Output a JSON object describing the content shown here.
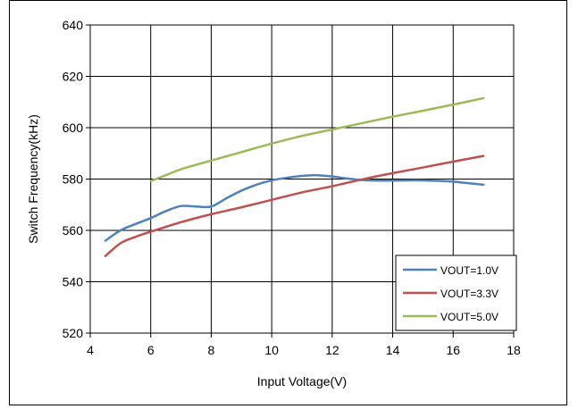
{
  "chart_data": {
    "type": "line",
    "title": "",
    "xlabel": "Input Voltage(V)",
    "ylabel": "Switch Frequency(kHz)",
    "xlim": [
      4,
      18
    ],
    "ylim": [
      520,
      640
    ],
    "xticks": [
      4,
      6,
      8,
      10,
      12,
      14,
      16,
      18
    ],
    "yticks": [
      520,
      540,
      560,
      580,
      600,
      620,
      640
    ],
    "grid": true,
    "legend_position": "bottom-right",
    "series": [
      {
        "name": "VOUT=1.0V",
        "color": "#4f81bd",
        "x": [
          4.5,
          5.0,
          5.5,
          6.0,
          6.5,
          7.0,
          7.5,
          8.0,
          8.5,
          9.0,
          9.5,
          10.0,
          10.5,
          11.0,
          11.5,
          12.0,
          12.5,
          13.0,
          13.5,
          14.0,
          14.5,
          15.0,
          15.5,
          16.0,
          16.5,
          17.0
        ],
        "y": [
          556,
          560,
          562.5,
          564.8,
          567.5,
          569.5,
          569.3,
          569.3,
          572.5,
          575.5,
          577.8,
          579.5,
          580.5,
          581.2,
          581.5,
          581.0,
          580.2,
          579.6,
          579.4,
          579.4,
          579.5,
          579.5,
          579.3,
          579.0,
          578.4,
          577.8
        ]
      },
      {
        "name": "VOUT=3.3V",
        "color": "#c0504d",
        "x": [
          4.5,
          5.0,
          5.5,
          6.0,
          7.0,
          8.0,
          9.0,
          10.0,
          11.0,
          12.0,
          13.0,
          14.0,
          15.0,
          16.0,
          17.0
        ],
        "y": [
          550,
          555,
          557.5,
          559.5,
          563.2,
          566.3,
          569.0,
          571.9,
          574.8,
          577.2,
          579.9,
          582.3,
          584.5,
          586.8,
          589.0
        ]
      },
      {
        "name": "VOUT=5.0V",
        "color": "#9bbb59",
        "x": [
          6.0,
          6.5,
          7.0,
          8.0,
          9.0,
          10.0,
          11.0,
          12.0,
          13.0,
          14.0,
          15.0,
          16.0,
          17.0
        ],
        "y": [
          579.2,
          581.5,
          583.8,
          587.2,
          590.5,
          593.8,
          596.8,
          599.3,
          601.8,
          604.3,
          606.6,
          609.0,
          611.5
        ]
      }
    ]
  }
}
